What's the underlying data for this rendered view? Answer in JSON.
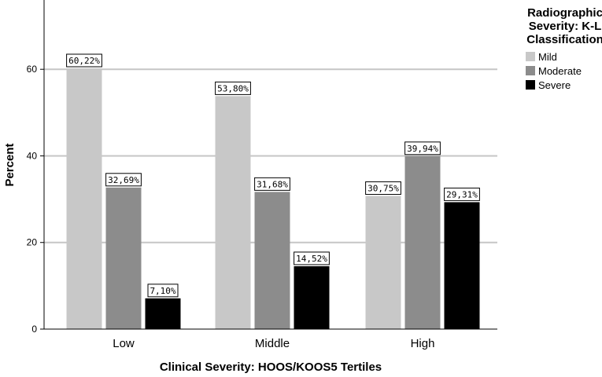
{
  "chart_data": {
    "type": "bar",
    "title": "",
    "xlabel": "Clinical Severity: HOOS/KOOS5 Tertiles",
    "ylabel": "Percent",
    "ylim": [
      0,
      76
    ],
    "yticks": [
      0,
      20,
      40,
      60
    ],
    "grid": true,
    "categories": [
      "Low",
      "Middle",
      "High"
    ],
    "series": [
      {
        "name": "Mild",
        "color": "#c8c8c8",
        "values": [
          60.22,
          53.8,
          30.75
        ],
        "labels": [
          "60,22%",
          "53,80%",
          "30,75%"
        ]
      },
      {
        "name": "Moderate",
        "color": "#8c8c8c",
        "values": [
          32.69,
          31.68,
          39.94
        ],
        "labels": [
          "32,69%",
          "31,68%",
          "39,94%"
        ]
      },
      {
        "name": "Severe",
        "color": "#000000",
        "values": [
          7.1,
          14.52,
          29.31
        ],
        "labels": [
          "7,10%",
          "14,52%",
          "29,31%"
        ]
      }
    ],
    "legend": {
      "title_lines": [
        "Radiographic",
        "Severity: K-L",
        "Classification"
      ],
      "placement": "top-right"
    }
  }
}
